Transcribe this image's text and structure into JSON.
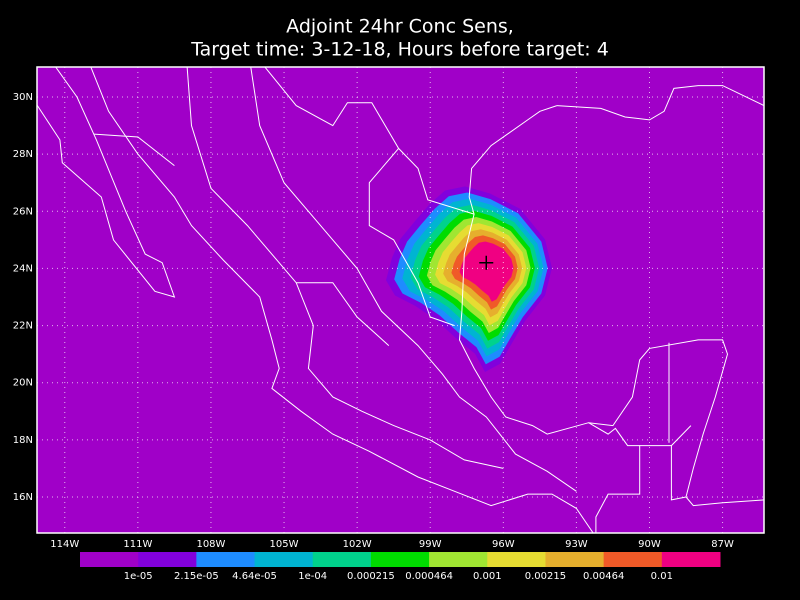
{
  "chart_data": {
    "type": "contour_map",
    "title": [
      "Adjoint 24hr Conc Sens,",
      "Target time: 3-12-18, Hours before target: 4"
    ],
    "xlim": [
      -115.14,
      -85.3
    ],
    "ylim": [
      14.74,
      31.05
    ],
    "xticks": [
      {
        "value": -114,
        "label": "114W"
      },
      {
        "value": -111,
        "label": "111W"
      },
      {
        "value": -108,
        "label": "108W"
      },
      {
        "value": -105,
        "label": "105W"
      },
      {
        "value": -102,
        "label": "102W"
      },
      {
        "value": -99,
        "label": "99W"
      },
      {
        "value": -96,
        "label": "96W"
      },
      {
        "value": -93,
        "label": "93W"
      },
      {
        "value": -90,
        "label": "90W"
      },
      {
        "value": -87,
        "label": "87W"
      }
    ],
    "yticks": [
      {
        "value": 16,
        "label": "16N"
      },
      {
        "value": 18,
        "label": "18N"
      },
      {
        "value": 20,
        "label": "20N"
      },
      {
        "value": 22,
        "label": "22N"
      },
      {
        "value": 24,
        "label": "24N"
      },
      {
        "value": 26,
        "label": "26N"
      },
      {
        "value": 28,
        "label": "28N"
      },
      {
        "value": 30,
        "label": "30N"
      }
    ],
    "grid": true,
    "target": {
      "lon": -96.7,
      "lat": 24.2
    },
    "colorbar": {
      "colors": [
        "#a000c8",
        "#8200dc",
        "#1e8cff",
        "#00b4d2",
        "#00d28c",
        "#00dc00",
        "#a0e632",
        "#e6dc32",
        "#e6af2d",
        "#f05a28",
        "#f00082"
      ],
      "levels": [
        {
          "value": 1e-05,
          "label": "1e-05"
        },
        {
          "value": 2.15e-05,
          "label": "2.15e-05"
        },
        {
          "value": 4.64e-05,
          "label": "4.64e-05"
        },
        {
          "value": 0.0001,
          "label": "1e-04"
        },
        0.000215,
        0.000464,
        0.001,
        0.00215,
        0.00464,
        0.01
      ]
    }
  }
}
